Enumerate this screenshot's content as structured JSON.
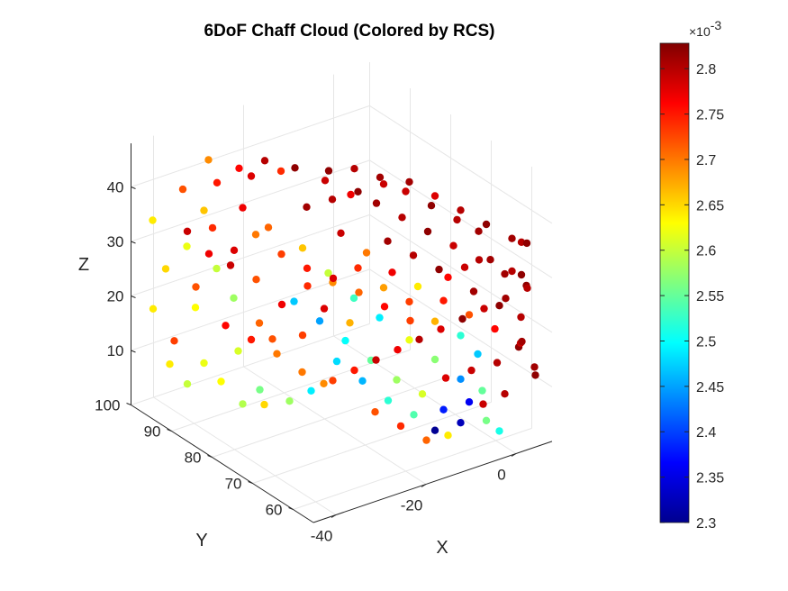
{
  "chart_data": {
    "type": "scatter",
    "projection": "3d",
    "title": "6DoF Chaff Cloud (Colored by RCS)",
    "xlabel": "X",
    "ylabel": "Y",
    "zlabel": "Z",
    "xlim": [
      -45,
      8
    ],
    "ylim": [
      55,
      100
    ],
    "zlim": [
      0,
      48
    ],
    "x_ticks": [
      "-40",
      "-20",
      "0"
    ],
    "y_ticks": [
      "60",
      "70",
      "80",
      "90",
      "100"
    ],
    "z_ticks": [
      "10",
      "20",
      "30",
      "40"
    ],
    "grid": true,
    "colormap": "jet",
    "colorbar": {
      "range": [
        0.0023,
        0.002828
      ],
      "ticks": [
        "2.3",
        "2.35",
        "2.4",
        "2.45",
        "2.5",
        "2.55",
        "2.6",
        "2.65",
        "2.7",
        "2.75",
        "2.8"
      ],
      "exponent_prefix": "×10",
      "exponent_power": "-3"
    },
    "points": [
      [
        -36,
        92,
        37,
        2.66
      ],
      [
        -42,
        98,
        34,
        2.64
      ],
      [
        -38,
        94,
        30,
        2.62
      ],
      [
        -35,
        90,
        27,
        2.6
      ],
      [
        -40,
        97,
        25,
        2.65
      ],
      [
        -33,
        88,
        22,
        2.58
      ],
      [
        -37,
        93,
        19,
        2.63
      ],
      [
        -41,
        99,
        17,
        2.64
      ],
      [
        -30,
        85,
        18,
        2.71
      ],
      [
        -28,
        84,
        15,
        2.72
      ],
      [
        -32,
        88,
        12,
        2.61
      ],
      [
        -36,
        92,
        9,
        2.62
      ],
      [
        -40,
        96,
        8,
        2.64
      ],
      [
        -25,
        80,
        10,
        2.7
      ],
      [
        -22,
        78,
        8,
        2.69
      ],
      [
        -34,
        90,
        6,
        2.63
      ],
      [
        -29,
        86,
        5,
        2.56
      ],
      [
        -26,
        82,
        4,
        2.58
      ],
      [
        -38,
        95,
        40,
        2.72
      ],
      [
        -34,
        91,
        42,
        2.75
      ],
      [
        -30,
        87,
        44,
        2.78
      ],
      [
        -27,
        83,
        46,
        2.74
      ],
      [
        -35,
        92,
        46,
        2.69
      ],
      [
        -31,
        88,
        38,
        2.77
      ],
      [
        -28,
        85,
        35,
        2.71
      ],
      [
        -24,
        81,
        32,
        2.66
      ],
      [
        -21,
        78,
        28,
        2.6
      ],
      [
        -18,
        75,
        24,
        2.53
      ],
      [
        -15,
        72,
        21,
        2.49
      ],
      [
        -25,
        82,
        22,
        2.47
      ],
      [
        -22,
        79,
        19,
        2.45
      ],
      [
        -19,
        76,
        16,
        2.5
      ],
      [
        -16,
        73,
        13,
        2.55
      ],
      [
        -13,
        70,
        10,
        2.58
      ],
      [
        -10,
        67,
        8,
        2.61
      ],
      [
        -20,
        77,
        12,
        2.48
      ],
      [
        -17,
        74,
        9,
        2.46
      ],
      [
        -14,
        71,
        6,
        2.52
      ],
      [
        -11,
        68,
        4,
        2.54
      ],
      [
        -23,
        80,
        6,
        2.49
      ],
      [
        -8,
        64,
        6,
        2.38
      ],
      [
        -6,
        62,
        4,
        2.33
      ],
      [
        -5,
        61,
        8,
        2.36
      ],
      [
        -9,
        65,
        2,
        2.31
      ],
      [
        -3,
        59,
        5,
        2.56
      ],
      [
        -1,
        58,
        3,
        2.51
      ],
      [
        -12,
        68,
        18,
        2.62
      ],
      [
        -9,
        65,
        15,
        2.57
      ],
      [
        -6,
        62,
        12,
        2.44
      ],
      [
        -3,
        60,
        10,
        2.55
      ],
      [
        -18,
        74,
        30,
        2.74
      ],
      [
        -15,
        71,
        27,
        2.68
      ],
      [
        -12,
        68,
        25,
        2.73
      ],
      [
        -9,
        65,
        22,
        2.67
      ],
      [
        -6,
        62,
        20,
        2.52
      ],
      [
        -4,
        60,
        17,
        2.47
      ],
      [
        -20,
        76,
        36,
        2.79
      ],
      [
        -17,
        73,
        33,
        2.7
      ],
      [
        -14,
        70,
        30,
        2.77
      ],
      [
        -11,
        67,
        28,
        2.64
      ],
      [
        -8,
        64,
        26,
        2.75
      ],
      [
        -5,
        61,
        24,
        2.72
      ],
      [
        -2,
        58,
        22,
        2.76
      ],
      [
        1,
        55,
        20,
        2.79
      ],
      [
        -24,
        80,
        40,
        2.81
      ],
      [
        -21,
        77,
        42,
        2.8
      ],
      [
        -18,
        74,
        44,
        2.82
      ],
      [
        -15,
        71,
        46,
        2.79
      ],
      [
        -12,
        68,
        47,
        2.81
      ],
      [
        -9,
        65,
        45,
        2.78
      ],
      [
        -6,
        62,
        43,
        2.8
      ],
      [
        -3,
        59,
        41,
        2.82
      ],
      [
        0,
        56,
        39,
        2.81
      ],
      [
        3,
        57,
        37,
        2.8
      ],
      [
        6,
        59,
        35,
        2.82
      ],
      [
        -30,
        90,
        44,
        2.76
      ],
      [
        -27,
        87,
        46,
        2.8
      ],
      [
        -23,
        84,
        45,
        2.82
      ],
      [
        -19,
        81,
        43,
        2.79
      ],
      [
        -16,
        78,
        41,
        2.77
      ],
      [
        -13,
        75,
        40,
        2.81
      ],
      [
        -10,
        72,
        38,
        2.8
      ],
      [
        -7,
        69,
        36,
        2.82
      ],
      [
        -4,
        66,
        34,
        2.79
      ],
      [
        -1,
        63,
        32,
        2.8
      ],
      [
        2,
        60,
        30,
        2.81
      ],
      [
        5,
        58,
        28,
        2.82
      ],
      [
        7,
        60,
        26,
        2.8
      ],
      [
        4,
        62,
        24,
        2.81
      ],
      [
        1,
        64,
        22,
        2.79
      ],
      [
        -2,
        66,
        20,
        2.82
      ],
      [
        -5,
        68,
        18,
        2.78
      ],
      [
        -8,
        70,
        16,
        2.8
      ],
      [
        -11,
        72,
        14,
        2.77
      ],
      [
        -14,
        74,
        12,
        2.79
      ],
      [
        -17,
        76,
        10,
        2.75
      ],
      [
        -20,
        78,
        8,
        2.73
      ],
      [
        -7,
        64,
        30,
        2.76
      ],
      [
        -4,
        61,
        28,
        2.81
      ],
      [
        -1,
        58,
        26,
        2.82
      ],
      [
        2,
        56,
        24,
        2.8
      ],
      [
        4,
        58,
        18,
        2.81
      ],
      [
        6,
        61,
        15,
        2.82
      ],
      [
        3,
        63,
        12,
        2.8
      ],
      [
        0,
        66,
        10,
        2.79
      ],
      [
        -3,
        69,
        8,
        2.78
      ],
      [
        5,
        56,
        14,
        2.81
      ],
      [
        7,
        58,
        11,
        2.82
      ],
      [
        2,
        60,
        8,
        2.8
      ],
      [
        -1,
        62,
        6,
        2.79
      ],
      [
        -26,
        84,
        30,
        2.73
      ],
      [
        -23,
        81,
        28,
        2.75
      ],
      [
        -20,
        78,
        26,
        2.69
      ],
      [
        -29,
        87,
        33,
        2.7
      ],
      [
        -32,
        89,
        30,
        2.78
      ],
      [
        -35,
        91,
        34,
        2.74
      ],
      [
        -33,
        90,
        16,
        2.76
      ],
      [
        -30,
        87,
        14,
        2.75
      ],
      [
        -27,
        84,
        12,
        2.7
      ],
      [
        -24,
        81,
        16,
        2.73
      ],
      [
        -21,
        79,
        21,
        2.78
      ],
      [
        -18,
        76,
        19,
        2.67
      ],
      [
        -36,
        94,
        22,
        2.72
      ],
      [
        -39,
        96,
        12,
        2.73
      ],
      [
        -37,
        95,
        4,
        2.6
      ],
      [
        -31,
        88,
        2,
        2.59
      ],
      [
        -28,
        86,
        2,
        2.65
      ],
      [
        -16,
        72,
        4,
        2.72
      ],
      [
        -13,
        69,
        2,
        2.74
      ],
      [
        -10,
        66,
        0,
        2.71
      ],
      [
        -7,
        64,
        1,
        2.64
      ],
      [
        -15,
        70,
        36,
        2.81
      ],
      [
        -12,
        67,
        34,
        2.8
      ],
      [
        -9,
        64,
        32,
        2.82
      ],
      [
        -6,
        61,
        33,
        2.79
      ],
      [
        -3,
        58,
        35,
        2.81
      ],
      [
        0,
        56,
        33,
        2.8
      ],
      [
        3,
        57,
        31,
        2.82
      ],
      [
        -2,
        62,
        38,
        2.81
      ],
      [
        -5,
        64,
        40,
        2.8
      ],
      [
        -8,
        67,
        42,
        2.82
      ],
      [
        -11,
        70,
        44,
        2.79
      ],
      [
        -14,
        73,
        46,
        2.81
      ],
      [
        -17,
        76,
        47,
        2.8
      ],
      [
        -20,
        79,
        46,
        2.82
      ],
      [
        -10,
        70,
        20,
        2.73
      ],
      [
        -13,
        73,
        22,
        2.76
      ],
      [
        -16,
        76,
        24,
        2.71
      ],
      [
        -19,
        79,
        26,
        2.78
      ],
      [
        -22,
        82,
        24,
        2.74
      ],
      [
        -25,
        85,
        20,
        2.77
      ],
      [
        -28,
        88,
        24,
        2.72
      ],
      [
        -31,
        91,
        26,
        2.79
      ],
      [
        -34,
        93,
        28,
        2.77
      ],
      [
        -37,
        95,
        32,
        2.79
      ]
    ]
  }
}
